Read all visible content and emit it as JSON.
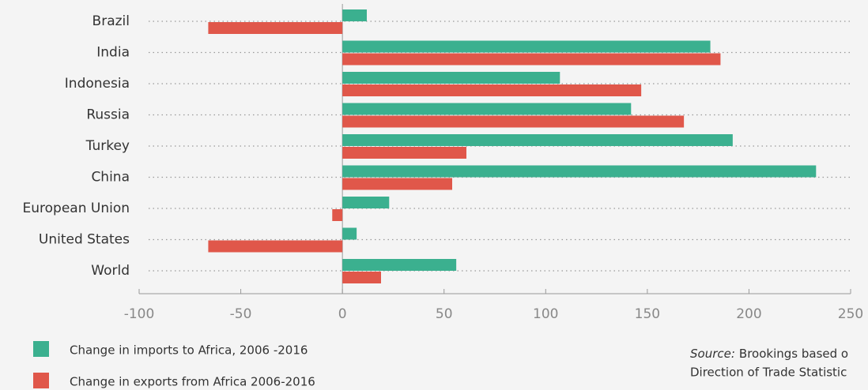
{
  "chart_data": {
    "type": "hbar",
    "categories": [
      "Brazil",
      "India",
      "Indonesia",
      "Russia",
      "Turkey",
      "China",
      "European Union",
      "United States",
      "World"
    ],
    "series": [
      {
        "name": "Change in imports to Africa, 2006 -2016",
        "color": "#3bb08f",
        "values": [
          12,
          181,
          107,
          142,
          192,
          233,
          23,
          7,
          56
        ]
      },
      {
        "name": "Change in exports from Africa 2006-2016",
        "color": "#e0574a",
        "values": [
          -66,
          186,
          147,
          168,
          61,
          54,
          -5,
          -66,
          19
        ]
      }
    ],
    "xlim": [
      -100,
      250
    ],
    "xticks": [
      -100,
      -50,
      0,
      50,
      100,
      150,
      200,
      250
    ],
    "source_label": "Source:",
    "source_lines": [
      "Brookings based o",
      "Direction of Trade Statistic"
    ]
  }
}
